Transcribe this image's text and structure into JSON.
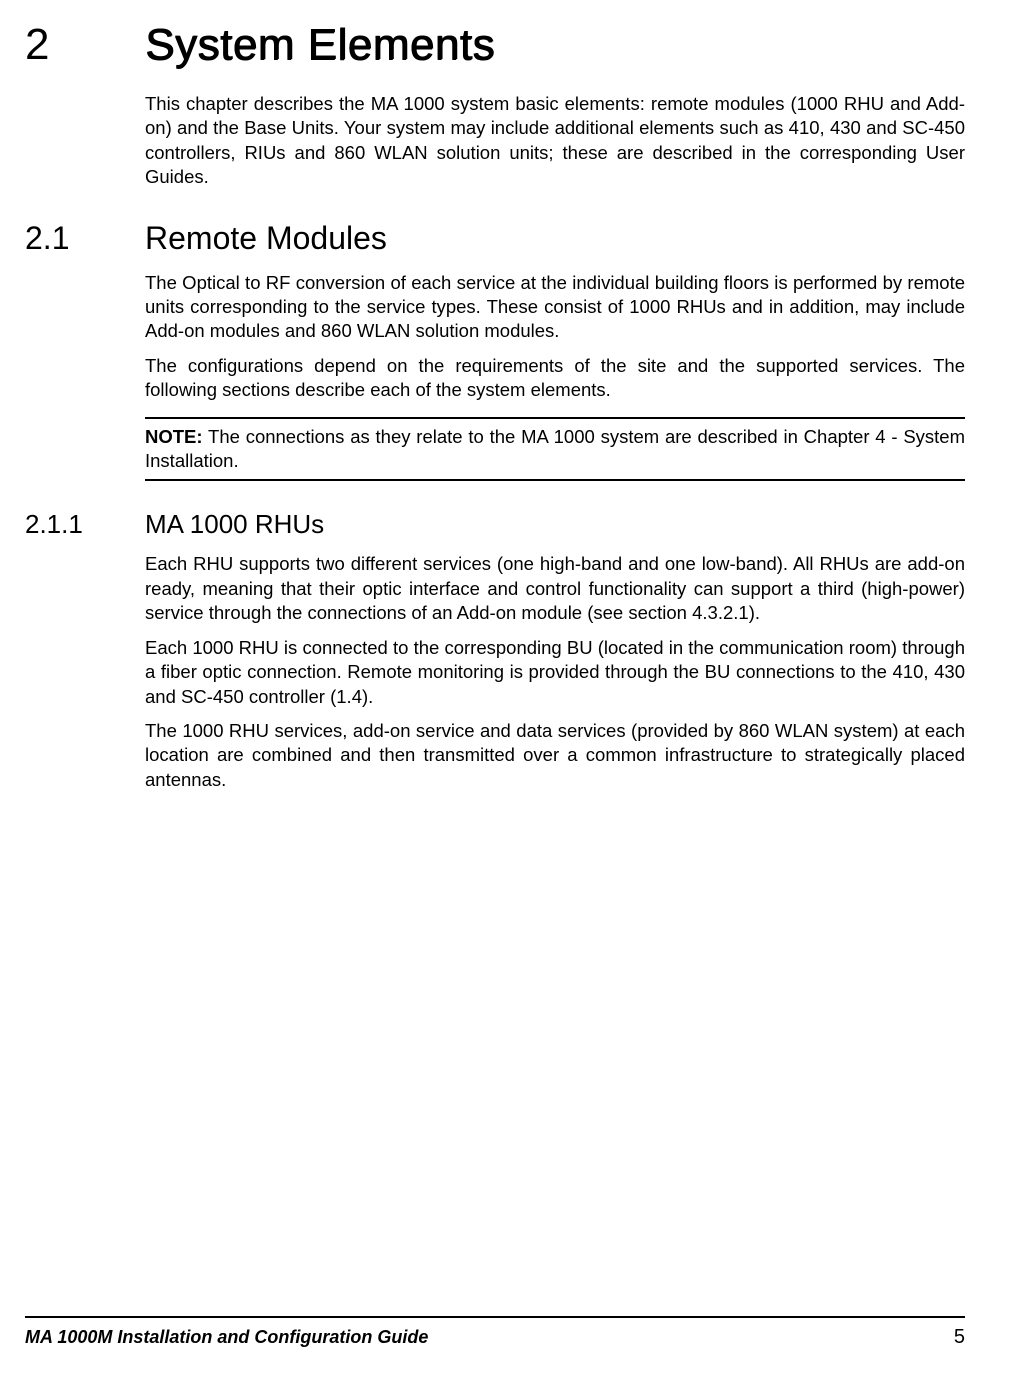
{
  "chapter": {
    "number": "2",
    "title": "System Elements",
    "intro": "This chapter describes the MA 1000 system basic elements: remote modules (1000 RHU and Add-on) and the Base Units. Your system may include additional elements such as 410, 430 and SC-450 controllers, RIUs and 860 WLAN solution units; these are described in the corresponding User Guides."
  },
  "section_2_1": {
    "number": "2.1",
    "title": "Remote Modules",
    "para1": "The Optical to RF conversion of each service at the individual building floors is performed by remote units corresponding to the service types. These consist of 1000 RHUs and in addition, may include Add-on modules and 860 WLAN solution modules.",
    "para2": "The configurations depend on the requirements of the site and the supported services. The following sections describe each of the system elements.",
    "note_label": "NOTE:",
    "note_text": " The connections as they relate to the MA 1000 system are described in Chapter 4  - System Installation."
  },
  "section_2_1_1": {
    "number": "2.1.1",
    "title": "MA 1000 RHUs",
    "para1": "Each RHU supports two different services (one high-band and one low-band).  All RHUs are add-on ready, meaning that their optic interface and control functionality can support a third (high-power) service through the connections of an Add-on module (see section 4.3.2.1).",
    "para2": "Each 1000 RHU is connected to the corresponding BU (located in the communication room) through a fiber optic connection. Remote monitoring is provided through the BU connections to the 410, 430 and SC-450 controller (1.4).",
    "para3": "The 1000 RHU services, add-on service and data services (provided by 860 WLAN system) at each location are combined and then transmitted over a common infrastructure to strategically placed antennas."
  },
  "footer": {
    "title": "MA 1000M Installation and Configuration Guide",
    "page": "5"
  }
}
